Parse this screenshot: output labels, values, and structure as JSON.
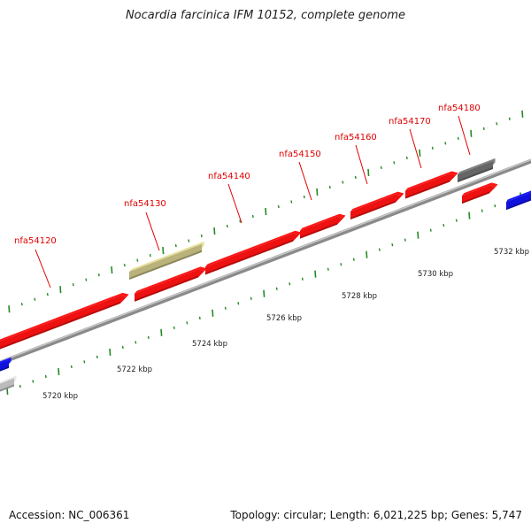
{
  "header": {
    "title": "Nocardia farcinica IFM 10152, complete genome"
  },
  "footer": {
    "accession": "Accession: NC_006361",
    "summary": "Topology: circular; Length: 6,021,225 bp; Genes: 5,747"
  },
  "colors": {
    "forward_gene": "#ee1111",
    "reverse_gene": "#1111dd",
    "other_feature": "#b9b27a",
    "dark_feature": "#666666",
    "light_feature": "#bbbbbb",
    "backbone": "#8a8a8a",
    "ticks": "#228b22",
    "gene_label": "#e00000"
  },
  "scale_labels": [
    "5720 kbp",
    "5722 kbp",
    "5724 kbp",
    "5726 kbp",
    "5728 kbp",
    "5730 kbp",
    "5732 kbp"
  ],
  "gene_labels": [
    "nfa54120",
    "nfa54130",
    "nfa54140",
    "nfa54150",
    "nfa54160",
    "nfa54170",
    "nfa54180"
  ]
}
